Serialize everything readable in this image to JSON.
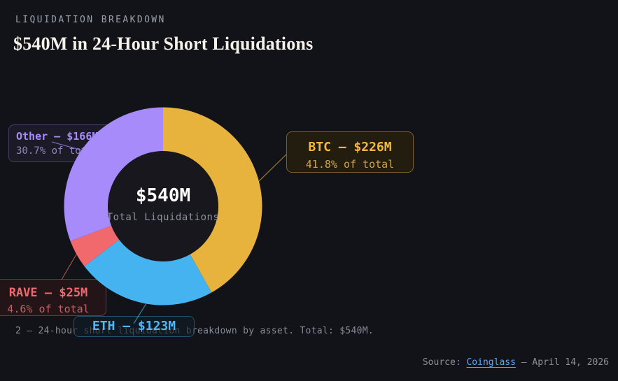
{
  "page": {
    "background": "#121318"
  },
  "header": {
    "eyebrow": "LIQUIDATION BREAKDOWN",
    "title": "$540M in 24-Hour Short Liquidations"
  },
  "donut_center": {
    "value": "$540M",
    "label": "Total Liquidations"
  },
  "callouts": {
    "other": {
      "title": "Other — $166M",
      "subtitle": "30.7% of total",
      "color": "#a78bfa"
    },
    "btc": {
      "title": "BTC — $226M",
      "subtitle": "41.8% of total",
      "color": "#f5b843"
    },
    "rave": {
      "title": "RAVE — $25M",
      "subtitle": "4.6% of total",
      "color": "#f2686c"
    },
    "eth": {
      "title": "ETH — $123M",
      "color": "#4fb9f7"
    }
  },
  "caption": {
    "text": "2 — 24-hour short liquidation breakdown by asset. Total: $540M."
  },
  "footer": {
    "source_prefix": "Source: ",
    "source_link": "Coinglass",
    "date_suffix": " — April 14, 2026"
  },
  "chart_data": {
    "type": "pie",
    "subtype": "donut",
    "title": "$540M in 24-Hour Short Liquidations",
    "unit": "USD millions",
    "total": 540,
    "center": {
      "value": "$540M",
      "label": "Total Liquidations"
    },
    "start_angle_deg": 0,
    "direction": "clockwise",
    "legend_position": "callout-labels",
    "hole_color": "#17171d",
    "series": [
      {
        "name": "BTC",
        "value": 226,
        "pct": 41.8,
        "color": "#e8b33d"
      },
      {
        "name": "ETH",
        "value": 123,
        "pct": 22.8,
        "color": "#45b3f0"
      },
      {
        "name": "RAVE",
        "value": 25,
        "pct": 4.6,
        "color": "#f2696d"
      },
      {
        "name": "Other",
        "value": 166,
        "pct": 30.7,
        "color": "#a78bfa"
      }
    ]
  }
}
